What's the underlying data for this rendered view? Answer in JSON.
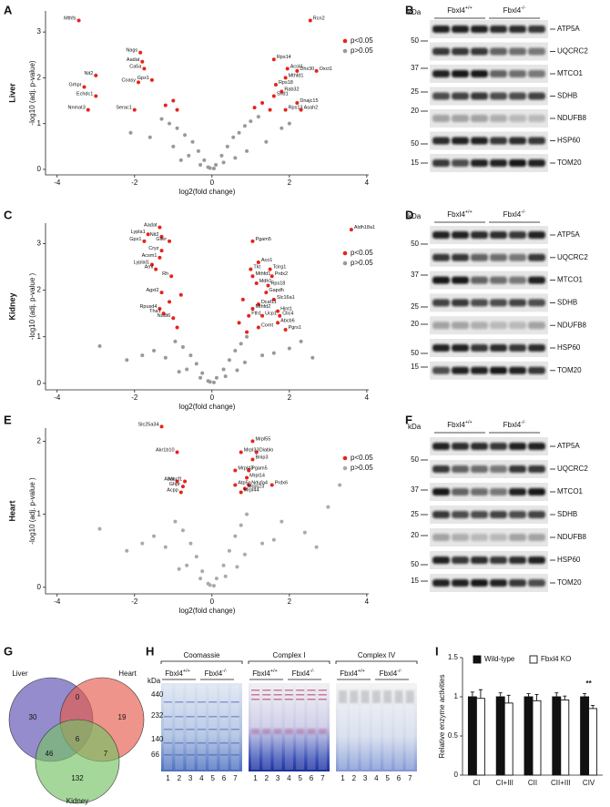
{
  "panel_letters": [
    "A",
    "B",
    "C",
    "D",
    "E",
    "F",
    "G",
    "H",
    "I"
  ],
  "chart_data": [
    {
      "type": "scatter",
      "row_label": "Liver",
      "x_label": "log2(fold change)",
      "y_label": "-log10 (adj. p-value)",
      "xlim": [
        -4.3,
        4.05
      ],
      "ylim": [
        -0.12,
        3.46
      ],
      "xticks": [
        -4,
        -2,
        0,
        2,
        4
      ],
      "yticks": [
        0,
        1,
        2,
        3
      ],
      "series": [
        {
          "name": "p<0.05",
          "color": "#e8231b",
          "x": [
            -3.44,
            2.54,
            -1.85,
            -1.8,
            -1.75,
            -1.55,
            -1.9,
            -3.0,
            -3.3,
            -3.0,
            -3.2,
            -2.0,
            1.6,
            1.95,
            2.2,
            2.7,
            1.9,
            1.65,
            1.8,
            1.6,
            2.2,
            2.3,
            1.9,
            -1.2,
            -1.0,
            -0.9,
            1.1,
            1.3,
            1.5
          ],
          "y": [
            3.25,
            3.25,
            2.55,
            2.35,
            2.2,
            1.95,
            1.9,
            2.05,
            1.8,
            1.6,
            1.3,
            1.3,
            2.4,
            2.2,
            2.15,
            2.15,
            2.0,
            1.85,
            1.7,
            1.6,
            1.45,
            1.3,
            1.3,
            1.4,
            1.5,
            1.3,
            1.35,
            1.45,
            1.3
          ],
          "labels": [
            "Mthfs",
            "Rcn2",
            "Nags",
            "Aadat",
            "Ca5a",
            "Gpx1",
            "Coasy",
            "Nit2",
            "Grhpr",
            "Echdc1",
            "Nnmat3",
            "Serac1",
            "Rps14",
            "Acsl4",
            "Dhx30",
            "Oxct1",
            "Mthfd1",
            "Rps18",
            "Rab32",
            "Snd1",
            "Dnajc15",
            "Asah2",
            "Rps13",
            null,
            null,
            null,
            null,
            null,
            null
          ]
        },
        {
          "name": "p>0.05",
          "color": "#999999",
          "x": [
            -0.1,
            0.1,
            -0.2,
            0.25,
            -0.35,
            0.4,
            -0.5,
            0.55,
            -0.7,
            0.7,
            -0.9,
            0.85,
            -1.1,
            1.0,
            -1.3,
            1.2,
            -0.6,
            0.6,
            -1.0,
            1.4,
            -1.6,
            0.3,
            -0.3,
            1.8,
            -2.1,
            2.0,
            0.05,
            -0.05,
            0.9,
            -0.8
          ],
          "y": [
            0.05,
            0.1,
            0.2,
            0.3,
            0.4,
            0.5,
            0.6,
            0.7,
            0.75,
            0.8,
            0.9,
            0.95,
            1.0,
            1.05,
            1.1,
            1.15,
            0.3,
            0.25,
            0.5,
            0.6,
            0.7,
            0.15,
            0.1,
            0.9,
            0.8,
            1.0,
            0.02,
            0.03,
            0.4,
            0.2
          ]
        }
      ]
    },
    {
      "type": "scatter",
      "row_label": "Kidney",
      "x_label": "log2(fold change)",
      "y_label": "-log10 (adj. p-value )",
      "xlim": [
        -4.3,
        4.05
      ],
      "ylim": [
        -0.14,
        3.44
      ],
      "xticks": [
        -4,
        -2,
        0,
        2,
        4
      ],
      "yticks": [
        0,
        1,
        2,
        3
      ],
      "series": [
        {
          "name": "p<0.05",
          "color": "#e8231b",
          "x": [
            3.6,
            -1.65,
            -1.35,
            -1.3,
            -1.75,
            -1.1,
            -1.3,
            -1.35,
            -1.55,
            -1.45,
            -1.05,
            -1.3,
            -1.35,
            -1.25,
            -1.0,
            1.05,
            1.2,
            1.0,
            1.5,
            1.05,
            1.55,
            1.15,
            1.45,
            1.4,
            1.6,
            1.2,
            1.05,
            1.7,
            0.95,
            1.3,
            1.75,
            1.7,
            1.2,
            1.9,
            -0.8,
            -0.9,
            0.8,
            0.9,
            -1.1,
            0.7
          ],
          "y": [
            3.3,
            3.2,
            3.35,
            3.15,
            3.05,
            3.05,
            2.85,
            2.7,
            2.55,
            2.45,
            2.3,
            1.95,
            1.6,
            1.5,
            1.4,
            3.05,
            2.6,
            2.45,
            2.45,
            2.3,
            2.3,
            2.15,
            2.1,
            1.95,
            1.8,
            1.7,
            1.6,
            1.55,
            1.45,
            1.45,
            1.45,
            1.3,
            1.2,
            1.15,
            1.9,
            1.2,
            1.8,
            1.1,
            1.75,
            1.3
          ],
          "labels": [
            "Aldh18a1",
            "Lypla1",
            "Aadat",
            "Nit2",
            "Gpx1",
            "Glier",
            "Cryz",
            "Acsm1",
            "Lyplal1",
            "Aml",
            "Rh",
            "Agxt2",
            "Rpusd4",
            "Tha1",
            "Nudt6",
            "Pgam5",
            "Aco1",
            "Tkt",
            "Tcirg1",
            "Mthfd1",
            "Prdx2",
            "Mdh1",
            "Rps18",
            "Gapdh",
            "Slc16a1",
            "Dcaf11",
            "Mthfd2",
            "Hint1",
            "Fth1",
            "Ucp1",
            "Clic4",
            "Abcb6",
            "Comt",
            "Pgrs1",
            null,
            null,
            null,
            null,
            null,
            null
          ]
        },
        {
          "name": "p>0.05",
          "color": "#999999",
          "x": [
            -0.1,
            0.12,
            -0.25,
            0.3,
            -0.4,
            0.45,
            -0.55,
            0.6,
            -0.75,
            0.75,
            -0.95,
            0.9,
            -2.9,
            2.3,
            -1.8,
            1.6,
            -0.65,
            0.65,
            -1.2,
            1.3,
            -1.5,
            0.35,
            -0.3,
            2.0,
            -2.2,
            2.6,
            0.05,
            -0.05,
            0.85,
            -0.85
          ],
          "y": [
            0.05,
            0.12,
            0.22,
            0.3,
            0.42,
            0.5,
            0.6,
            0.7,
            0.78,
            0.85,
            0.9,
            1.0,
            0.8,
            0.9,
            0.6,
            0.65,
            0.3,
            0.28,
            0.55,
            0.6,
            0.7,
            0.15,
            0.12,
            0.75,
            0.5,
            0.55,
            0.02,
            0.03,
            0.45,
            0.25
          ]
        }
      ]
    },
    {
      "type": "scatter",
      "row_label": "Heart",
      "x_label": "log2(fold change)",
      "y_label": "-log10 (adj. p-value )",
      "xlim": [
        -4.3,
        4.05
      ],
      "ylim": [
        -0.09,
        2.18
      ],
      "xticks": [
        -4,
        -2,
        0,
        2,
        4
      ],
      "yticks": [
        0,
        1,
        2
      ],
      "series": [
        {
          "name": "p<0.05",
          "color": "#e8231b",
          "x": [
            -1.3,
            -0.9,
            1.05,
            1.15,
            0.75,
            1.05,
            0.95,
            0.6,
            0.9,
            1.55,
            0.6,
            0.95,
            0.85,
            0.75,
            -0.9,
            -0.7,
            -0.75,
            -0.8
          ],
          "y": [
            2.2,
            1.85,
            2.0,
            1.85,
            1.85,
            1.75,
            1.6,
            1.6,
            1.5,
            1.4,
            1.4,
            1.4,
            1.35,
            1.3,
            1.45,
            1.45,
            1.38,
            1.3
          ],
          "labels": [
            "Slc25a34",
            "Akr1b10",
            "Mrpl55",
            "Diablo",
            "Mrpl33",
            "Bnip3",
            "Pgam5",
            "Mrpl43",
            "Mrpl14",
            "Prdx6",
            "Atp5o",
            "Ndufa4",
            "Mrps23",
            "Mrpl44",
            "Abat",
            "Macf1",
            "Ghpr",
            "Acpp"
          ]
        },
        {
          "name": "p>0.05",
          "color": "#aaaaaa",
          "x": [
            -0.1,
            0.12,
            -0.25,
            0.3,
            -0.4,
            0.45,
            -0.55,
            0.6,
            -0.75,
            0.75,
            -0.95,
            0.9,
            -2.9,
            1.8,
            3.0,
            -1.8,
            1.6,
            -0.65,
            0.65,
            -1.2,
            1.3,
            -1.5,
            0.35,
            -0.3,
            2.4,
            -2.2,
            2.7,
            0.05,
            -0.05,
            0.85,
            -0.85,
            3.3
          ],
          "y": [
            0.05,
            0.12,
            0.22,
            0.3,
            0.42,
            0.5,
            0.6,
            0.7,
            0.78,
            0.85,
            0.9,
            1.0,
            0.8,
            0.9,
            1.1,
            0.6,
            0.65,
            0.3,
            0.28,
            0.55,
            0.6,
            0.7,
            0.15,
            0.12,
            0.75,
            0.5,
            0.55,
            0.02,
            0.03,
            0.45,
            0.25,
            1.4
          ]
        }
      ]
    },
    {
      "type": "bar",
      "y_label": "Relative enzyme activities",
      "annotation": "**",
      "categories": [
        "CI",
        "CI+III",
        "CII",
        "CII+III",
        "CIV"
      ],
      "ylim": [
        0,
        1.5
      ],
      "yticks": [
        0,
        0.5,
        1,
        1.5
      ],
      "series": [
        {
          "name": "Wild-type",
          "color": "#111111",
          "values": [
            1.0,
            1.0,
            1.0,
            1.0,
            1.0
          ],
          "errors": [
            0.06,
            0.05,
            0.04,
            0.05,
            0.04
          ]
        },
        {
          "name": "Fbxl4 KO",
          "color": "#ffffff",
          "values": [
            0.98,
            0.92,
            0.95,
            0.96,
            0.85
          ],
          "errors": [
            0.11,
            0.1,
            0.08,
            0.05,
            0.04
          ]
        }
      ]
    }
  ],
  "blots": [
    {
      "headers": [
        {
          "gene": "Fbxl4",
          "genotype": "+/+"
        },
        {
          "gene": "Fbxl4",
          "genotype": "-/-"
        }
      ],
      "unit": "kDa",
      "proteins": [
        "ATP5A",
        "UQCRC2",
        "MTCO1",
        "SDHB",
        "NDUFB8",
        "HSP60",
        "TOM20"
      ],
      "kda": [
        50,
        37,
        25,
        20,
        50,
        15
      ]
    },
    {
      "headers": [
        {
          "gene": "Fbxl4",
          "genotype": "+/+"
        },
        {
          "gene": "Fbxl4",
          "genotype": "-/-"
        }
      ],
      "unit": "kDa",
      "proteins": [
        "ATP5A",
        "UQCRC2",
        "MTCO1",
        "SDHB",
        "NDUFB8",
        "HSP60",
        "TOM20"
      ],
      "kda": [
        50,
        37,
        25,
        20,
        50,
        15
      ]
    },
    {
      "headers": [
        {
          "gene": "Fbxl4",
          "genotype": "+/+"
        },
        {
          "gene": "Fbxl4",
          "genotype": "-/-"
        }
      ],
      "unit": "kDa",
      "proteins": [
        "ATP5A",
        "UQCRC2",
        "MTCO1",
        "SDHB",
        "NDUFB8",
        "HSP60",
        "TOM20"
      ],
      "kda": [
        50,
        37,
        25,
        20,
        50,
        15
      ]
    }
  ],
  "venn": {
    "sets": [
      "Liver",
      "Heart",
      "Kidney"
    ],
    "regions": [
      30,
      0,
      19,
      46,
      6,
      7,
      132
    ]
  },
  "gels": {
    "titles": [
      "Coomassie",
      "Complex I",
      "Complex IV"
    ],
    "unit": "kDa",
    "genotypes": [
      {
        "gene": "Fbxl4",
        "genotype": "+/+"
      },
      {
        "gene": "Fbxl4",
        "genotype": "-/-"
      }
    ],
    "kda": [
      440,
      232,
      140,
      66
    ],
    "lanes": [
      1,
      2,
      3,
      4,
      5,
      6,
      7
    ]
  }
}
